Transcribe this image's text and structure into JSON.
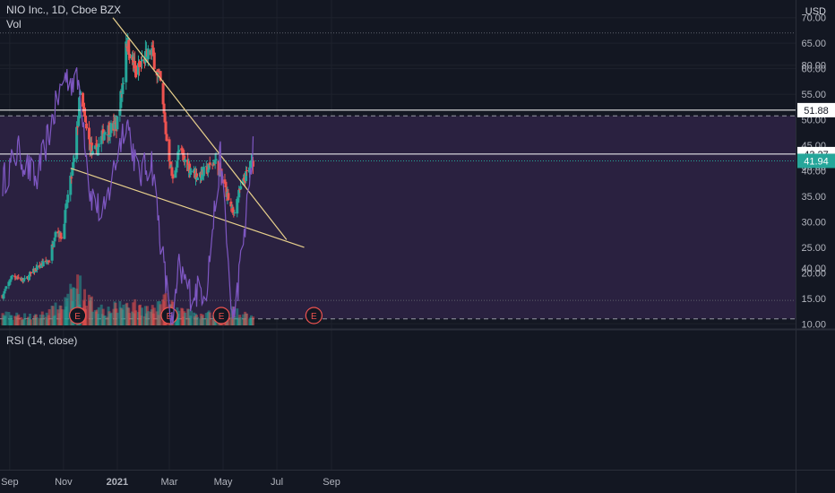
{
  "header": {
    "title": "NIO Inc., 1D, Cboe BZX",
    "volume_label": "Vol",
    "currency": "USD"
  },
  "rsi_panel": {
    "label": "RSI (14, close)"
  },
  "colors": {
    "background": "#131722",
    "grid": "#1e222d",
    "up": "#26a69a",
    "down": "#ef5350",
    "trendline": "#e8d08c",
    "rsi_line": "#7e57c2",
    "rsi_band": "#2a2140",
    "earnings": "#ef5350",
    "text": "#b2b5be"
  },
  "chart_data": [
    {
      "type": "candlestick",
      "symbol": "NIO Inc.",
      "timeframe": "1D",
      "exchange": "Cboe BZX",
      "x_tick_labels": [
        "Sep",
        "Nov",
        "2021",
        "Mar",
        "May",
        "Jul",
        "Sep"
      ],
      "y_tick_labels": [
        "10.00",
        "15.00",
        "20.00",
        "25.00",
        "30.00",
        "35.00",
        "40.00",
        "45.00",
        "50.00",
        "55.00",
        "60.00",
        "65.00",
        "70.00"
      ],
      "ylim": [
        10,
        70
      ],
      "price_labels": [
        {
          "text": "51.88",
          "value": 51.88,
          "style": "horizontal-line"
        },
        {
          "text": "43.27",
          "value": 43.27,
          "style": "horizontal-line"
        },
        {
          "text": "41.94",
          "value": 41.94,
          "style": "current-price"
        }
      ],
      "dotted_level": 67.0,
      "ohlc_anchor_closes": [
        [
          "2020-08-24",
          15.5
        ],
        [
          "2020-09-04",
          19.5
        ],
        [
          "2020-09-18",
          18.5
        ],
        [
          "2020-10-02",
          21.0
        ],
        [
          "2020-10-16",
          22.5
        ],
        [
          "2020-10-23",
          28.5
        ],
        [
          "2020-10-30",
          27.0
        ],
        [
          "2020-11-06",
          35.0
        ],
        [
          "2020-11-13",
          42.0
        ],
        [
          "2020-11-20",
          55.0
        ],
        [
          "2020-11-27",
          48.0
        ],
        [
          "2020-12-04",
          43.0
        ],
        [
          "2020-12-11",
          45.0
        ],
        [
          "2020-12-18",
          48.0
        ],
        [
          "2020-12-31",
          48.7
        ],
        [
          "2021-01-08",
          58.0
        ],
        [
          "2021-01-11",
          66.0
        ],
        [
          "2021-01-22",
          59.0
        ],
        [
          "2021-02-01",
          62.0
        ],
        [
          "2021-02-09",
          63.5
        ],
        [
          "2021-02-19",
          57.0
        ],
        [
          "2021-02-26",
          46.0
        ],
        [
          "2021-03-05",
          38.0
        ],
        [
          "2021-03-12",
          44.0
        ],
        [
          "2021-03-22",
          41.0
        ],
        [
          "2021-04-01",
          39.0
        ],
        [
          "2021-04-12",
          40.0
        ],
        [
          "2021-04-22",
          42.0
        ],
        [
          "2021-05-03",
          37.0
        ],
        [
          "2021-05-12",
          31.5
        ],
        [
          "2021-05-20",
          36.0
        ],
        [
          "2021-05-27",
          39.0
        ],
        [
          "2021-06-04",
          41.94
        ]
      ],
      "trendlines": [
        {
          "name": "upper",
          "points": [
            [
              "2020-12-27",
              70.0
            ],
            [
              "2021-07-12",
              26.5
            ]
          ]
        },
        {
          "name": "lower",
          "points": [
            [
              "2020-11-09",
              40.5
            ],
            [
              "2021-08-01",
              25.0
            ]
          ]
        }
      ],
      "earnings_events": [
        {
          "label": "E",
          "date": "2020-11-17"
        },
        {
          "label": "E",
          "date": "2021-03-01"
        },
        {
          "label": "E",
          "date": "2021-04-29"
        },
        {
          "label": "E",
          "date": "2021-08-12"
        }
      ],
      "volume_shape": [
        [
          "2020-08-24",
          0.25
        ],
        [
          "2020-10-01",
          0.2
        ],
        [
          "2020-10-20",
          0.35
        ],
        [
          "2020-11-05",
          0.55
        ],
        [
          "2020-11-16",
          1.0
        ],
        [
          "2020-11-30",
          0.55
        ],
        [
          "2020-12-20",
          0.35
        ],
        [
          "2021-01-11",
          0.5
        ],
        [
          "2021-02-10",
          0.35
        ],
        [
          "2021-02-25",
          0.55
        ],
        [
          "2021-03-15",
          0.3
        ],
        [
          "2021-04-20",
          0.25
        ],
        [
          "2021-05-12",
          0.35
        ],
        [
          "2021-06-04",
          0.2
        ]
      ]
    },
    {
      "type": "line",
      "name": "RSI (14, close)",
      "y_tick_labels": [
        "40.00",
        "60.00",
        "80.00"
      ],
      "bands": [
        30,
        70
      ],
      "anchors": [
        [
          "2020-08-24",
          57
        ],
        [
          "2020-09-10",
          63
        ],
        [
          "2020-10-01",
          57
        ],
        [
          "2020-10-16",
          67
        ],
        [
          "2020-11-02",
          78
        ],
        [
          "2020-11-20",
          76
        ],
        [
          "2020-12-01",
          55
        ],
        [
          "2020-12-16",
          50
        ],
        [
          "2021-01-11",
          70
        ],
        [
          "2021-01-25",
          58
        ],
        [
          "2021-02-09",
          61
        ],
        [
          "2021-02-25",
          37
        ],
        [
          "2021-03-05",
          28
        ],
        [
          "2021-03-12",
          40
        ],
        [
          "2021-03-25",
          35
        ],
        [
          "2021-04-12",
          36
        ],
        [
          "2021-04-28",
          62
        ],
        [
          "2021-05-12",
          29
        ],
        [
          "2021-05-22",
          42
        ],
        [
          "2021-06-04",
          63
        ]
      ]
    }
  ]
}
